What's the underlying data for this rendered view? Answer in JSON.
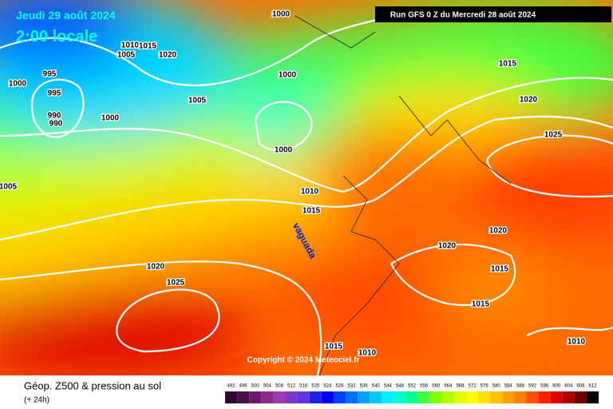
{
  "header": {
    "date": "Jeudi 29 août 2024",
    "time": "2:00 locale",
    "run": "Run GFS 0 Z du Mercredi 28 août 2024"
  },
  "map": {
    "isobar_labels": [
      1000,
      1010,
      1015,
      1020,
      1005,
      995,
      995,
      990,
      990,
      1000,
      1000,
      1005,
      1000,
      1000,
      1015,
      1020,
      1025,
      1010,
      1015,
      1005,
      1020,
      1025,
      1020,
      1020,
      1015,
      1015,
      1010,
      1015,
      1010
    ],
    "annotation": "vaguada",
    "copyright": "Copyright © 2024 Meteociel.fr"
  },
  "footer": {
    "title": "Géop. Z500 & pression au sol",
    "subtitle": "(+ 24h)"
  },
  "legend": {
    "values": [
      492,
      496,
      500,
      504,
      508,
      512,
      516,
      520,
      524,
      528,
      532,
      536,
      540,
      544,
      548,
      552,
      556,
      560,
      564,
      568,
      572,
      576,
      580,
      584,
      588,
      592,
      596,
      600,
      604,
      608,
      612
    ],
    "colors": [
      "#2d0a2d",
      "#4b0f4b",
      "#6a1a6a",
      "#8a2a8a",
      "#a03aa8",
      "#7a3ac8",
      "#5a3ae0",
      "#2020e0",
      "#0000ff",
      "#0040ff",
      "#0070ff",
      "#00a0ff",
      "#00c8ff",
      "#00f0ff",
      "#00ffd0",
      "#00ff90",
      "#40ff40",
      "#80ff00",
      "#b0ff00",
      "#e0ff00",
      "#ffff00",
      "#ffe000",
      "#ffc000",
      "#ffa000",
      "#ff8000",
      "#ff5000",
      "#ff2000",
      "#e00000",
      "#b00000",
      "#700000",
      "#000000"
    ]
  }
}
